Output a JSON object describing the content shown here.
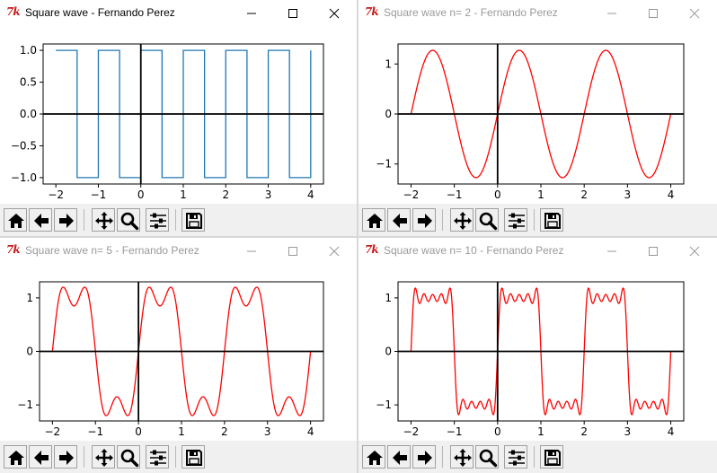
{
  "windows": [
    {
      "id": "w0",
      "title": "Square wave - Fernando Perez",
      "active": true,
      "icon": "tk-feather-icon",
      "chart_data": {
        "type": "line",
        "series": [
          {
            "kind": "square",
            "period": 1,
            "amplitude": 1,
            "color": "#1f77b4",
            "x_start": -2,
            "x_end": 4
          }
        ],
        "xlim": [
          -2.3,
          4.3
        ],
        "ylim": [
          -1.1,
          1.1
        ],
        "xticks": [
          -2,
          -1,
          0,
          1,
          2,
          3,
          4
        ],
        "xtick_labels": [
          "−2",
          "−1",
          "0",
          "1",
          "2",
          "3",
          "4"
        ],
        "yticks": [
          1.0,
          0.5,
          0.0,
          -0.5,
          -1.0
        ],
        "ytick_labels": [
          "1.0",
          "0.5",
          "0.0",
          "−0.5",
          "−1.0"
        ],
        "axhline": 0,
        "axvline": 0,
        "title": "",
        "xlabel": "",
        "ylabel": ""
      }
    },
    {
      "id": "w1",
      "title": "Square wave n= 2 - Fernando Perez",
      "active": false,
      "icon": "tk-feather-icon",
      "chart_data": {
        "type": "line",
        "series": [
          {
            "kind": "fourier",
            "terms": 1,
            "color": "#ff0000",
            "x_start": -2,
            "x_end": 4
          }
        ],
        "xlim": [
          -2.3,
          4.3
        ],
        "ylim": [
          -1.4,
          1.4
        ],
        "xticks": [
          -2,
          -1,
          0,
          1,
          2,
          3,
          4
        ],
        "xtick_labels": [
          "−2",
          "−1",
          "0",
          "1",
          "2",
          "3",
          "4"
        ],
        "yticks": [
          1,
          0,
          -1
        ],
        "ytick_labels": [
          "1",
          "0",
          "−1"
        ],
        "axhline": 0,
        "axvline": 0,
        "title": "",
        "xlabel": "",
        "ylabel": ""
      }
    },
    {
      "id": "w2",
      "title": "Square wave n= 5 - Fernando Perez",
      "active": false,
      "icon": "tk-feather-icon",
      "chart_data": {
        "type": "line",
        "series": [
          {
            "kind": "fourier",
            "terms": 2,
            "color": "#ff0000",
            "x_start": -2,
            "x_end": 4
          }
        ],
        "xlim": [
          -2.3,
          4.3
        ],
        "ylim": [
          -1.3,
          1.3
        ],
        "xticks": [
          -2,
          -1,
          0,
          1,
          2,
          3,
          4
        ],
        "xtick_labels": [
          "−2",
          "−1",
          "0",
          "1",
          "2",
          "3",
          "4"
        ],
        "yticks": [
          1,
          0,
          -1
        ],
        "ytick_labels": [
          "1",
          "0",
          "−1"
        ],
        "axhline": 0,
        "axvline": 0,
        "title": "",
        "xlabel": "",
        "ylabel": ""
      }
    },
    {
      "id": "w3",
      "title": "Square wave n= 10 - Fernando Perez",
      "active": false,
      "icon": "tk-feather-icon",
      "chart_data": {
        "type": "line",
        "series": [
          {
            "kind": "fourier",
            "terms": 5,
            "color": "#ff0000",
            "x_start": -2,
            "x_end": 4
          }
        ],
        "xlim": [
          -2.3,
          4.3
        ],
        "ylim": [
          -1.3,
          1.3
        ],
        "xticks": [
          -2,
          -1,
          0,
          1,
          2,
          3,
          4
        ],
        "xtick_labels": [
          "−2",
          "−1",
          "0",
          "1",
          "2",
          "3",
          "4"
        ],
        "yticks": [
          1,
          0,
          -1
        ],
        "ytick_labels": [
          "1",
          "0",
          "−1"
        ],
        "axhline": 0,
        "axvline": 0,
        "title": "",
        "xlabel": "",
        "ylabel": ""
      }
    }
  ],
  "window_controls": [
    "minimize-icon",
    "maximize-icon",
    "close-icon"
  ],
  "toolbar_buttons": [
    {
      "name": "home-button",
      "icon": "home-icon"
    },
    {
      "name": "back-button",
      "icon": "arrow-left-icon"
    },
    {
      "name": "forward-button",
      "icon": "arrow-right-icon"
    },
    {
      "name": "pan-button",
      "icon": "move-icon"
    },
    {
      "name": "zoom-button",
      "icon": "magnifier-icon"
    },
    {
      "name": "subplots-button",
      "icon": "sliders-icon"
    },
    {
      "name": "save-button",
      "icon": "floppy-disk-icon"
    }
  ]
}
